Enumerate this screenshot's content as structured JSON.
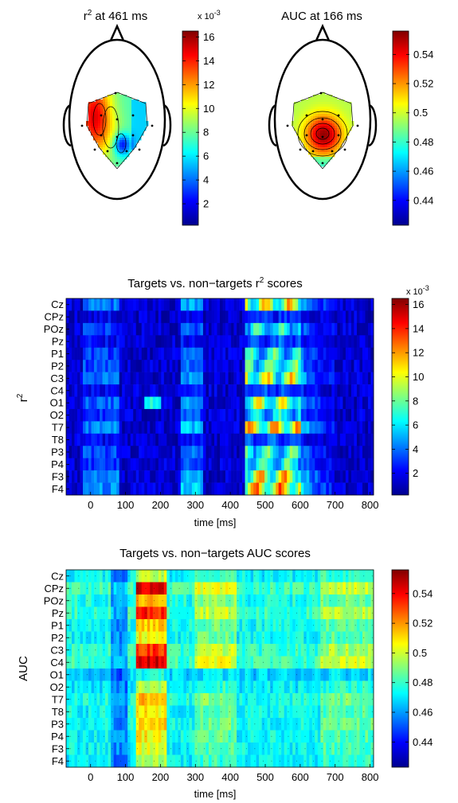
{
  "chart_data": [
    {
      "type": "topoplot",
      "title_sym": "r",
      "title_sup": "2",
      "title_rest": " at 461 ms",
      "colorbar": {
        "ticks": [
          "2",
          "4",
          "6",
          "8",
          "10",
          "12",
          "14",
          "16"
        ],
        "multiplier_base": "x 10",
        "multiplier_exp": "-3",
        "range": [
          0.2,
          16.5
        ]
      },
      "peak_location": "left-center"
    },
    {
      "type": "topoplot",
      "title": "AUC at 166 ms",
      "colorbar": {
        "ticks": [
          "0.44",
          "0.46",
          "0.48",
          "0.5",
          "0.52",
          "0.54"
        ],
        "range": [
          0.423,
          0.556
        ]
      },
      "peak_location": "center"
    },
    {
      "type": "heatmap",
      "title_pre": "Targets vs. non−targets ",
      "title_sym": "r",
      "title_sup": "2",
      "title_post": " scores",
      "ylabel_sym": "r",
      "ylabel_sup": "2",
      "xlabel": "time [ms]",
      "channels": [
        "Cz",
        "CPz",
        "POz",
        "Pz",
        "P1",
        "P2",
        "C3",
        "C4",
        "O1",
        "O2",
        "T7",
        "T8",
        "P3",
        "P4",
        "F3",
        "F4"
      ],
      "x_ticks": [
        "0",
        "100",
        "200",
        "300",
        "400",
        "500",
        "600",
        "700",
        "800"
      ],
      "xlim": [
        -70,
        810
      ],
      "colorbar": {
        "ticks": [
          "2",
          "4",
          "6",
          "8",
          "10",
          "12",
          "14",
          "16"
        ],
        "multiplier_base": "x 10",
        "multiplier_exp": "-3",
        "range": [
          0.2,
          16.5
        ]
      },
      "peak_window_ms": [
        440,
        600
      ]
    },
    {
      "type": "heatmap",
      "title": "Targets vs. non−targets AUC scores",
      "ylabel": "AUC",
      "xlabel": "time [ms]",
      "channels": [
        "Cz",
        "CPz",
        "POz",
        "Pz",
        "P1",
        "P2",
        "C3",
        "C4",
        "O1",
        "O2",
        "T7",
        "T8",
        "P3",
        "P4",
        "F3",
        "F4"
      ],
      "x_ticks": [
        "0",
        "100",
        "200",
        "300",
        "400",
        "500",
        "600",
        "700",
        "800"
      ],
      "xlim": [
        -70,
        810
      ],
      "colorbar": {
        "ticks": [
          "0.44",
          "0.46",
          "0.48",
          "0.5",
          "0.52",
          "0.54"
        ],
        "range": [
          0.423,
          0.556
        ]
      },
      "peak_window_ms": [
        130,
        220
      ]
    }
  ]
}
